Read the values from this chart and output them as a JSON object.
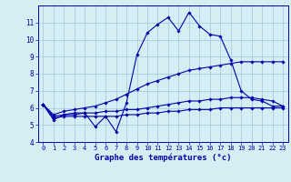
{
  "title": "Graphe des températures (°c)",
  "bg_color": "#d4eef4",
  "grid_color": "#aaccdd",
  "line_color": "#0000aa",
  "x_hours": [
    0,
    1,
    2,
    3,
    4,
    5,
    6,
    7,
    8,
    9,
    10,
    11,
    12,
    13,
    14,
    15,
    16,
    17,
    18,
    19,
    20,
    21,
    22,
    23
  ],
  "temp_curve": [
    6.2,
    5.3,
    5.6,
    5.7,
    5.7,
    4.9,
    5.5,
    4.6,
    6.3,
    9.1,
    10.4,
    10.9,
    11.3,
    10.5,
    11.6,
    10.8,
    10.3,
    10.2,
    8.8,
    7.0,
    6.5,
    6.4,
    6.1,
    6.1
  ],
  "line_upper": [
    6.2,
    5.6,
    5.8,
    5.9,
    6.0,
    6.1,
    6.3,
    6.5,
    6.8,
    7.1,
    7.4,
    7.6,
    7.8,
    8.0,
    8.2,
    8.3,
    8.4,
    8.5,
    8.6,
    8.7,
    8.7,
    8.7,
    8.7,
    8.7
  ],
  "line_mid": [
    6.2,
    5.5,
    5.6,
    5.6,
    5.7,
    5.7,
    5.8,
    5.8,
    5.9,
    5.9,
    6.0,
    6.1,
    6.2,
    6.3,
    6.4,
    6.4,
    6.5,
    6.5,
    6.6,
    6.6,
    6.6,
    6.5,
    6.4,
    6.1
  ],
  "line_lower": [
    6.2,
    5.4,
    5.5,
    5.5,
    5.5,
    5.5,
    5.5,
    5.5,
    5.6,
    5.6,
    5.7,
    5.7,
    5.8,
    5.8,
    5.9,
    5.9,
    5.9,
    6.0,
    6.0,
    6.0,
    6.0,
    6.0,
    6.0,
    6.0
  ],
  "ylim": [
    4,
    12
  ],
  "xlim": [
    -0.5,
    23.5
  ],
  "yticks": [
    4,
    5,
    6,
    7,
    8,
    9,
    10,
    11
  ],
  "xticks": [
    0,
    1,
    2,
    3,
    4,
    5,
    6,
    7,
    8,
    9,
    10,
    11,
    12,
    13,
    14,
    15,
    16,
    17,
    18,
    19,
    20,
    21,
    22,
    23
  ]
}
